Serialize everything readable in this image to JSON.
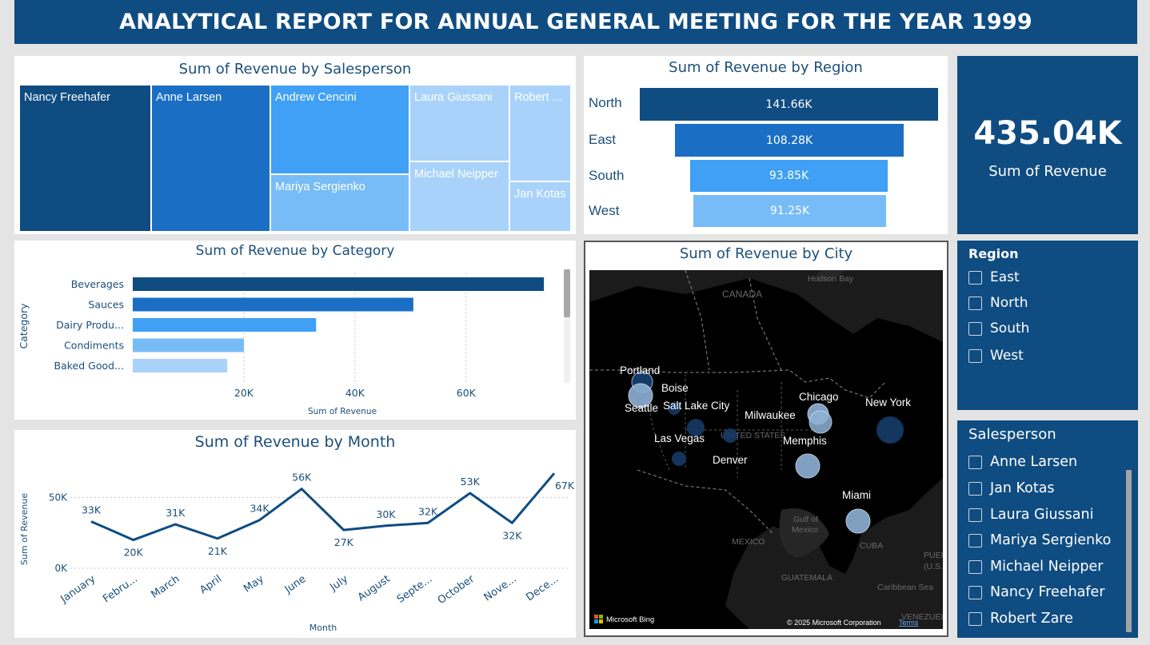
{
  "header": {
    "title": "ANALYTICAL REPORT FOR ANNUAL GENERAL MEETING FOR THE YEAR 1999"
  },
  "colors": {
    "dark": "#0f4c81",
    "mid": "#1a6fc4",
    "bright": "#3fa0f5",
    "light": "#77bcf7",
    "pale": "#a8d2fa"
  },
  "salesperson_treemap": {
    "title": "Sum of Revenue by Salesperson",
    "cells": [
      "Nancy Freehafer",
      "Anne Larsen",
      "Andrew Cencini",
      "Mariya Sergienko",
      "Laura Giussani",
      "Michael Neipper",
      "Robert ...",
      "Jan Kotas"
    ]
  },
  "region_funnel": {
    "title": "Sum of Revenue by Region",
    "rows": [
      {
        "label": "North",
        "value_label": "141.66K"
      },
      {
        "label": "East",
        "value_label": "108.28K"
      },
      {
        "label": "South",
        "value_label": "93.85K"
      },
      {
        "label": "West",
        "value_label": "91.25K"
      }
    ]
  },
  "kpi": {
    "value": "435.04K",
    "label": "Sum of Revenue"
  },
  "region_slicer": {
    "title": "Region",
    "items": [
      "East",
      "North",
      "South",
      "West"
    ]
  },
  "salesperson_slicer": {
    "title": "Salesperson",
    "items": [
      "Anne Larsen",
      "Jan Kotas",
      "Laura Giussani",
      "Mariya Sergienko",
      "Michael Neipper",
      "Nancy Freehafer",
      "Robert Zare"
    ]
  },
  "category_chart": {
    "title": "Sum of Revenue by Category",
    "ylabel": "Category",
    "xlabel": "Sum of Revenue",
    "categories": [
      "Beverages",
      "Sauces",
      "Dairy Produ...",
      "Condiments",
      "Baked Good..."
    ],
    "ticks": [
      "20K",
      "40K",
      "60K"
    ]
  },
  "month_chart": {
    "title": "Sum of Revenue by Month",
    "ylabel": "Sum of Revenue",
    "xlabel": "Month",
    "months": [
      "January",
      "Febru...",
      "March",
      "April",
      "May",
      "June",
      "July",
      "August",
      "Septe...",
      "October",
      "Nove...",
      "Dece..."
    ],
    "value_labels": [
      "33K",
      "20K",
      "31K",
      "21K",
      "34K",
      "56K",
      "27K",
      "30K",
      "32K",
      "53K",
      "32K",
      "67K"
    ],
    "yticks": [
      "0K",
      "50K"
    ]
  },
  "map": {
    "title": "Sum of Revenue by City",
    "cities": [
      "Portland",
      "Boise",
      "Seattle",
      "Salt Lake City",
      "Las Vegas",
      "Denver",
      "Chicago",
      "Milwaukee",
      "Memphis",
      "New York",
      "Miami"
    ],
    "geo_labels": [
      "Hudson Bay",
      "CANADA",
      "UNITED STATES",
      "Gulf of",
      "Mexico",
      "MEXICO",
      "CUBA",
      "GUATEMALA",
      "Caribbean Sea",
      "VENEZUELA",
      "PUER",
      "(U.S.)"
    ],
    "brand": "Microsoft Bing",
    "copyright": "© 2025 Microsoft Corporation",
    "terms": "Terms"
  },
  "chart_data": [
    {
      "type": "bar",
      "orientation": "horizontal",
      "title": "Sum of Revenue by Category",
      "categories": [
        "Beverages",
        "Sauces",
        "Dairy Produ...",
        "Condiments",
        "Baked Good..."
      ],
      "values": [
        74000,
        50500,
        33000,
        20000,
        17000
      ],
      "xlabel": "Sum of Revenue",
      "ylabel": "Category",
      "xlim": [
        0,
        76000
      ],
      "grid": true
    },
    {
      "type": "line",
      "title": "Sum of Revenue by Month",
      "categories": [
        "January",
        "Febru...",
        "March",
        "April",
        "May",
        "June",
        "July",
        "August",
        "Septe...",
        "October",
        "Nove...",
        "Dece..."
      ],
      "values": [
        33,
        20,
        31,
        21,
        34,
        56,
        27,
        30,
        32,
        53,
        32,
        67
      ],
      "xlabel": "Month",
      "ylabel": "Sum of Revenue",
      "ylim": [
        0,
        75
      ],
      "grid": true
    },
    {
      "type": "bar",
      "title": "Sum of Revenue by Region",
      "categories": [
        "North",
        "East",
        "South",
        "West"
      ],
      "values": [
        141660,
        108280,
        93850,
        91250
      ]
    }
  ]
}
